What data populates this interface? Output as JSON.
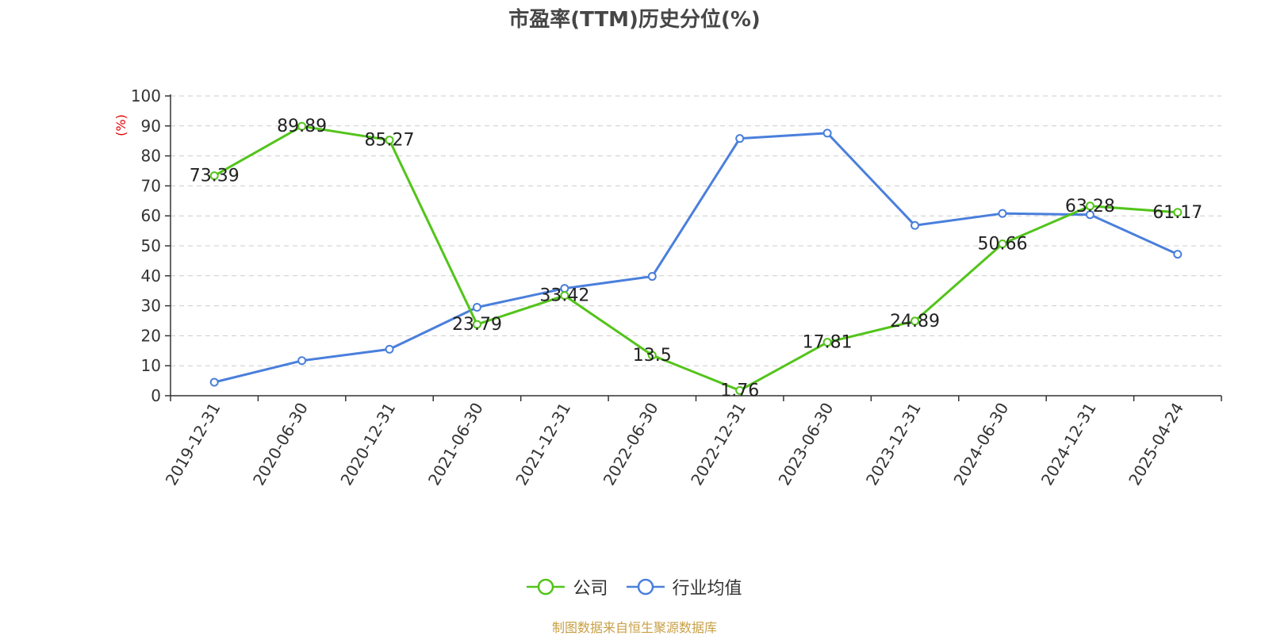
{
  "chart_data": {
    "type": "line",
    "title": "市盈率(TTM)历史分位(%)",
    "ylabel": "(%)",
    "ylim": [
      0,
      100
    ],
    "yticks": [
      0,
      10,
      20,
      30,
      40,
      50,
      60,
      70,
      80,
      90,
      100
    ],
    "categories": [
      "2019-12-31",
      "2020-06-30",
      "2020-12-31",
      "2021-06-30",
      "2021-12-31",
      "2022-06-30",
      "2022-12-31",
      "2023-06-30",
      "2023-12-31",
      "2024-06-30",
      "2024-12-31",
      "2025-04-24"
    ],
    "grid": true,
    "legend_position": "bottom",
    "series": [
      {
        "name": "公司",
        "color": "#52c41a",
        "show_labels": true,
        "values": [
          73.39,
          89.89,
          85.27,
          23.79,
          33.42,
          13.5,
          1.76,
          17.81,
          24.89,
          50.66,
          63.28,
          61.17
        ]
      },
      {
        "name": "行业均值",
        "color": "#4a7fdc",
        "show_labels": false,
        "values": [
          4.5,
          11.7,
          15.5,
          29.5,
          35.8,
          39.8,
          85.8,
          87.6,
          56.8,
          60.8,
          60.4,
          47.2
        ]
      }
    ]
  },
  "source_note": "制图数据来自恒生聚源数据库"
}
